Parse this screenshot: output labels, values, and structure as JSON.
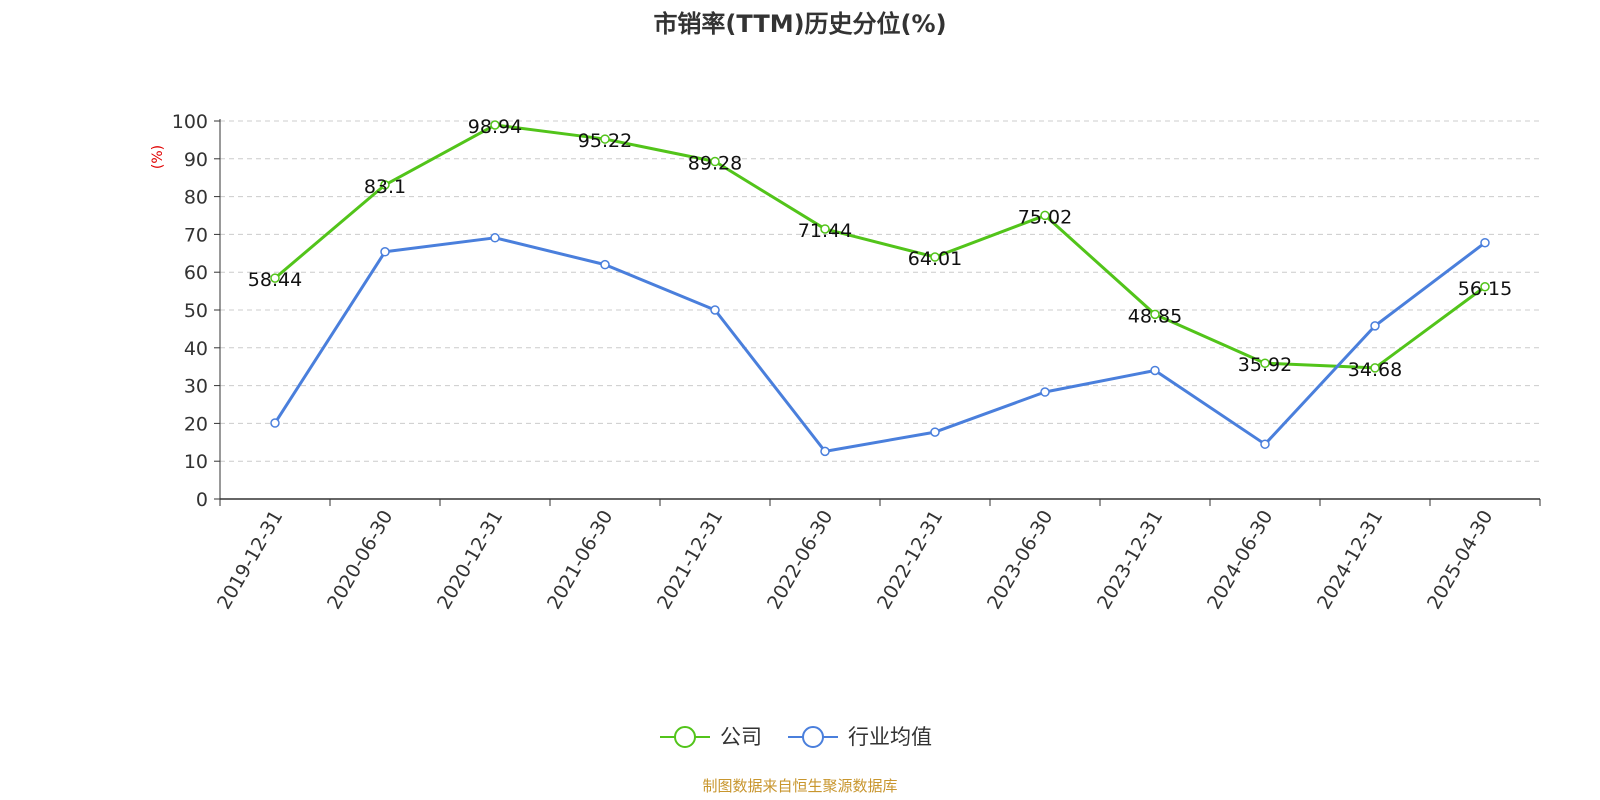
{
  "chart_data": {
    "type": "line",
    "title": "市销率(TTM)历史分位(%)",
    "ylabel": "(%)",
    "ylim": [
      0,
      100
    ],
    "yticks": [
      0,
      10,
      20,
      30,
      40,
      50,
      60,
      70,
      80,
      90,
      100
    ],
    "categories": [
      "2019-12-31",
      "2020-06-30",
      "2020-12-31",
      "2021-06-30",
      "2021-12-31",
      "2022-06-30",
      "2022-12-31",
      "2023-06-30",
      "2023-12-31",
      "2024-06-30",
      "2024-12-31",
      "2025-04-30"
    ],
    "series": [
      {
        "name": "公司",
        "color": "#52c41a",
        "values": [
          58.44,
          83.1,
          98.94,
          95.22,
          89.28,
          71.44,
          64.01,
          75.02,
          48.85,
          35.92,
          34.68,
          56.15
        ],
        "labels": [
          "58.44",
          "83.1",
          "98.94",
          "95.22",
          "89.28",
          "71.44",
          "64.01",
          "75.02",
          "48.85",
          "35.92",
          "34.68",
          "56.15"
        ]
      },
      {
        "name": "行业均值",
        "color": "#4a7fdc",
        "values": [
          20.1,
          65.4,
          69.1,
          62.0,
          50.0,
          12.6,
          17.7,
          28.3,
          34.0,
          14.5,
          45.8,
          67.8
        ]
      }
    ],
    "grid": true,
    "legend": "bottom-center",
    "source": "制图数据来自恒生聚源数据库"
  }
}
